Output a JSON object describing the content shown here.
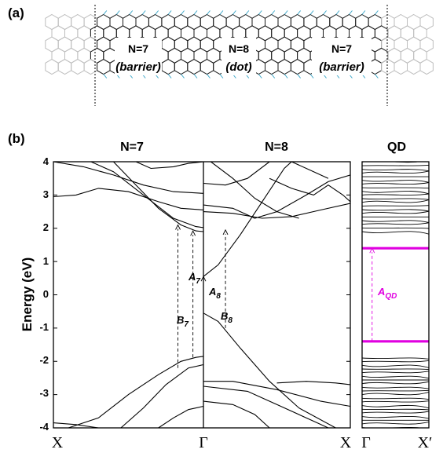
{
  "panel_a": {
    "label": "(a)",
    "segments": [
      {
        "name": "N=7",
        "role": "(barrier)"
      },
      {
        "name": "N=8",
        "role": "(dot)"
      },
      {
        "name": "N=7",
        "role": "(barrier)"
      }
    ],
    "colors": {
      "bonds_inner": "#1a1a1a",
      "bonds_outer": "#bdbdbd",
      "edge_h": "#3aa6c8"
    }
  },
  "panel_b": {
    "label": "(b)",
    "ylabel": "Energy (eV)",
    "titles": [
      "N=7",
      "N=8",
      "QD"
    ],
    "annotations": {
      "A7": "A",
      "A7_sub": "7",
      "B7": "B",
      "B7_sub": "7",
      "A8": "A",
      "A8_sub": "8",
      "B8": "B",
      "B8_sub": "8",
      "AQD": "A",
      "AQD_sub": "QD"
    },
    "kpoints": [
      "X",
      "Γ",
      "X",
      "Γ",
      "X′"
    ]
  },
  "chart_data": {
    "type": "line",
    "ylim": [
      -4,
      4
    ],
    "yticks": [
      "4",
      "3",
      "2",
      "1",
      "0",
      "-1",
      "-2",
      "-3",
      "-4"
    ],
    "yticks_values": [
      4,
      3,
      2,
      1,
      0,
      -1,
      -2,
      -3,
      -4
    ],
    "panels": [
      {
        "title": "N=7",
        "k_range": [
          "X",
          "Γ"
        ],
        "bands": [
          [
            [
              0,
              4.0
            ],
            [
              0.2,
              3.85
            ],
            [
              0.4,
              3.6
            ],
            [
              0.6,
              3.3
            ],
            [
              0.8,
              3.1
            ],
            [
              1,
              3.05
            ]
          ],
          [
            [
              0,
              2.95
            ],
            [
              0.15,
              3.0
            ],
            [
              0.3,
              3.2
            ],
            [
              0.5,
              3.1
            ],
            [
              0.7,
              2.8
            ],
            [
              0.85,
              2.6
            ],
            [
              1,
              2.55
            ]
          ],
          [
            [
              0.25,
              4.0
            ],
            [
              0.4,
              3.7
            ],
            [
              0.6,
              3.0
            ],
            [
              0.8,
              2.3
            ],
            [
              0.95,
              2.05
            ],
            [
              1,
              2.02
            ]
          ],
          [
            [
              0.4,
              4.0
            ],
            [
              0.55,
              3.3
            ],
            [
              0.7,
              2.6
            ],
            [
              0.85,
              2.1
            ],
            [
              0.95,
              1.92
            ],
            [
              1,
              1.9
            ]
          ],
          [
            [
              0.55,
              4.0
            ],
            [
              0.65,
              3.8
            ],
            [
              0.8,
              3.85
            ],
            [
              0.9,
              3.95
            ],
            [
              1,
              4.0
            ]
          ],
          [
            [
              0.1,
              -4.0
            ],
            [
              0.3,
              -3.7
            ],
            [
              0.5,
              -3.0
            ],
            [
              0.7,
              -2.4
            ],
            [
              0.85,
              -2.0
            ],
            [
              0.95,
              -1.88
            ],
            [
              1,
              -1.85
            ]
          ],
          [
            [
              0.45,
              -4.0
            ],
            [
              0.6,
              -3.4
            ],
            [
              0.75,
              -2.7
            ],
            [
              0.9,
              -2.2
            ],
            [
              1,
              -2.1
            ]
          ],
          [
            [
              0.7,
              -4.0
            ],
            [
              0.8,
              -3.7
            ],
            [
              0.9,
              -3.45
            ],
            [
              1,
              -3.35
            ]
          ],
          [
            [
              0,
              -3.85
            ],
            [
              0.15,
              -3.9
            ],
            [
              0.3,
              -4.0
            ]
          ]
        ]
      },
      {
        "title": "N=8",
        "k_range": [
          "Γ",
          "X"
        ],
        "bands": [
          [
            [
              0,
              0.55
            ],
            [
              0.1,
              0.9
            ],
            [
              0.25,
              1.8
            ],
            [
              0.4,
              2.8
            ],
            [
              0.55,
              3.8
            ],
            [
              0.6,
              4.0
            ]
          ],
          [
            [
              0,
              2.5
            ],
            [
              0.2,
              2.45
            ],
            [
              0.4,
              2.3
            ],
            [
              0.6,
              2.35
            ],
            [
              0.8,
              2.55
            ],
            [
              1,
              2.75
            ]
          ],
          [
            [
              0,
              2.7
            ],
            [
              0.2,
              2.6
            ],
            [
              0.35,
              2.3
            ],
            [
              0.5,
              2.5
            ],
            [
              0.7,
              3.0
            ],
            [
              0.85,
              3.4
            ],
            [
              1,
              3.6
            ]
          ],
          [
            [
              0,
              3.35
            ],
            [
              0.15,
              3.3
            ],
            [
              0.3,
              3.5
            ],
            [
              0.45,
              4.0
            ]
          ],
          [
            [
              0.05,
              4.0
            ],
            [
              0.2,
              3.5
            ],
            [
              0.35,
              2.9
            ],
            [
              0.5,
              2.5
            ],
            [
              0.65,
              2.3
            ]
          ],
          [
            [
              0.45,
              3.5
            ],
            [
              0.6,
              3.2
            ],
            [
              0.75,
              3.0
            ],
            [
              0.85,
              3.3
            ],
            [
              0.95,
              3.0
            ],
            [
              1,
              2.8
            ]
          ],
          [
            [
              0.6,
              4.0
            ],
            [
              0.75,
              3.7
            ],
            [
              0.85,
              3.5
            ]
          ],
          [
            [
              0,
              -0.55
            ],
            [
              0.1,
              -0.8
            ],
            [
              0.25,
              -1.6
            ],
            [
              0.45,
              -2.6
            ],
            [
              0.65,
              -3.4
            ],
            [
              0.9,
              -4.0
            ]
          ],
          [
            [
              0,
              -2.6
            ],
            [
              0.2,
              -2.6
            ],
            [
              0.5,
              -2.85
            ],
            [
              0.8,
              -3.2
            ],
            [
              1,
              -3.35
            ]
          ],
          [
            [
              0,
              -2.75
            ],
            [
              0.3,
              -2.9
            ],
            [
              0.5,
              -3.3
            ],
            [
              0.75,
              -3.8
            ],
            [
              0.85,
              -4.0
            ]
          ],
          [
            [
              0,
              -3.2
            ],
            [
              0.2,
              -3.3
            ],
            [
              0.35,
              -3.6
            ],
            [
              0.45,
              -4.0
            ]
          ],
          [
            [
              0.5,
              -2.65
            ],
            [
              0.7,
              -2.6
            ],
            [
              0.9,
              -2.65
            ],
            [
              1,
              -2.7
            ]
          ]
        ]
      },
      {
        "title": "QD",
        "k_range": [
          "Γ",
          "X′"
        ],
        "highlighted_levels": [
          1.4,
          -1.4
        ],
        "highlight_color": "#e000e0"
      }
    ],
    "transitions": [
      {
        "name": "A7",
        "panel": "N=7",
        "k": 0.93,
        "from": -1.88,
        "to": 1.92
      },
      {
        "name": "B7",
        "panel": "N=7",
        "k": 0.83,
        "from": -2.2,
        "to": 2.1
      },
      {
        "name": "A8",
        "panel": "N=8",
        "k": 0.0,
        "from": -0.55,
        "to": 0.55
      },
      {
        "name": "B8",
        "panel": "N=8",
        "k": 0.15,
        "from": -1.0,
        "to": 1.95
      },
      {
        "name": "AQD",
        "panel": "QD",
        "k": 0.15,
        "from": -1.4,
        "to": 1.4
      }
    ]
  }
}
